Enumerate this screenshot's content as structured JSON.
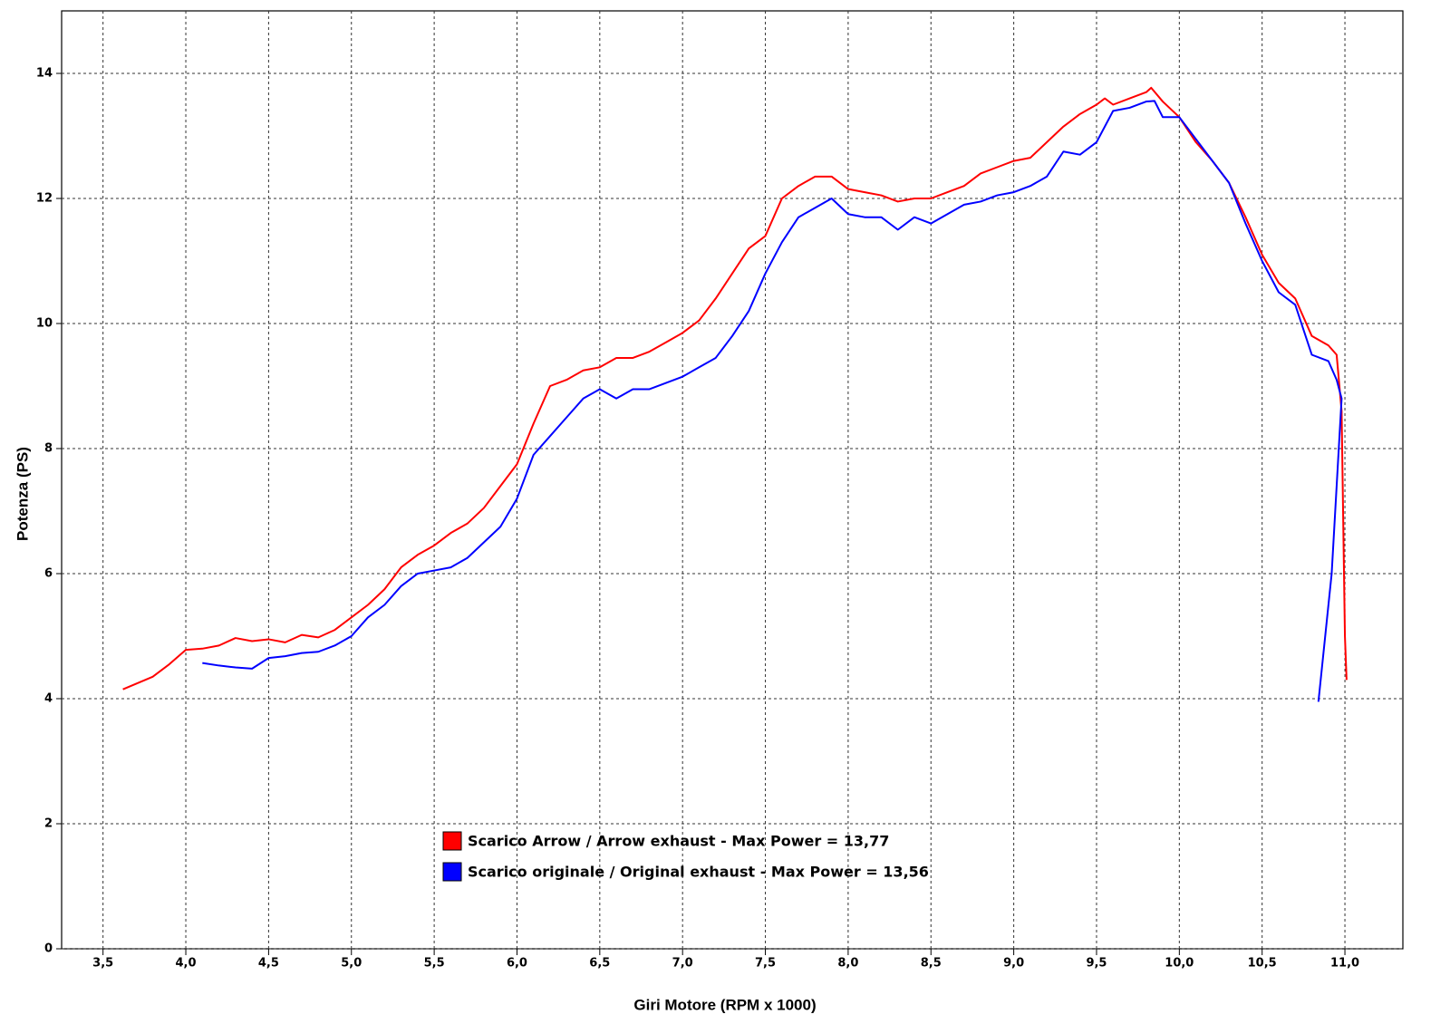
{
  "chart_data": {
    "type": "line",
    "x_label": "Giri Motore (RPM x 1000)",
    "y_label": "Potenza (PS)",
    "xlim": [
      3.25,
      11.35
    ],
    "ylim": [
      0,
      15
    ],
    "xticks": [
      {
        "value": 3.5,
        "label": "3,5"
      },
      {
        "value": 4.0,
        "label": "4,0"
      },
      {
        "value": 4.5,
        "label": "4,5"
      },
      {
        "value": 5.0,
        "label": "5,0"
      },
      {
        "value": 5.5,
        "label": "5,5"
      },
      {
        "value": 6.0,
        "label": "6,0"
      },
      {
        "value": 6.5,
        "label": "6,5"
      },
      {
        "value": 7.0,
        "label": "7,0"
      },
      {
        "value": 7.5,
        "label": "7,5"
      },
      {
        "value": 8.0,
        "label": "8,0"
      },
      {
        "value": 8.5,
        "label": "8,5"
      },
      {
        "value": 9.0,
        "label": "9,0"
      },
      {
        "value": 9.5,
        "label": "9,5"
      },
      {
        "value": 10.0,
        "label": "10,0"
      },
      {
        "value": 10.5,
        "label": "10,5"
      },
      {
        "value": 11.0,
        "label": "11,0"
      }
    ],
    "yticks": [
      0,
      2,
      4,
      6,
      8,
      10,
      12,
      14
    ],
    "grid": true,
    "series": [
      {
        "name": "Scarico Arrow / Arrow exhaust - Max Power = 13,77",
        "color": "#ff0000",
        "x": [
          3.62,
          3.8,
          3.9,
          4.0,
          4.1,
          4.2,
          4.3,
          4.4,
          4.5,
          4.6,
          4.7,
          4.8,
          4.9,
          5.0,
          5.1,
          5.2,
          5.3,
          5.4,
          5.5,
          5.6,
          5.7,
          5.8,
          5.9,
          6.0,
          6.1,
          6.2,
          6.3,
          6.4,
          6.5,
          6.6,
          6.7,
          6.8,
          6.9,
          7.0,
          7.1,
          7.2,
          7.3,
          7.4,
          7.5,
          7.6,
          7.7,
          7.8,
          7.9,
          8.0,
          8.1,
          8.2,
          8.3,
          8.4,
          8.5,
          8.6,
          8.7,
          8.8,
          8.9,
          9.0,
          9.1,
          9.2,
          9.3,
          9.4,
          9.5,
          9.55,
          9.6,
          9.7,
          9.8,
          9.83,
          9.9,
          10.0,
          10.1,
          10.2,
          10.3,
          10.4,
          10.5,
          10.6,
          10.7,
          10.8,
          10.9,
          10.95,
          10.98,
          11.0,
          11.01
        ],
        "values": [
          4.15,
          4.35,
          4.55,
          4.78,
          4.8,
          4.85,
          4.97,
          4.92,
          4.95,
          4.9,
          5.02,
          4.98,
          5.1,
          5.3,
          5.5,
          5.75,
          6.1,
          6.3,
          6.45,
          6.65,
          6.8,
          7.05,
          7.4,
          7.75,
          8.4,
          9.0,
          9.1,
          9.25,
          9.3,
          9.45,
          9.45,
          9.55,
          9.7,
          9.85,
          10.05,
          10.4,
          10.8,
          11.2,
          11.4,
          12.0,
          12.2,
          12.35,
          12.35,
          12.15,
          12.1,
          12.05,
          11.95,
          12.0,
          12.0,
          12.1,
          12.2,
          12.4,
          12.5,
          12.6,
          12.65,
          12.9,
          13.15,
          13.35,
          13.5,
          13.6,
          13.5,
          13.6,
          13.7,
          13.77,
          13.55,
          13.3,
          12.9,
          12.6,
          12.25,
          11.7,
          11.1,
          10.65,
          10.4,
          9.8,
          9.65,
          9.5,
          8.6,
          5.0,
          4.3
        ]
      },
      {
        "name": "Scarico originale / Original exhaust - Max Power = 13,56",
        "color": "#0000ff",
        "x": [
          4.1,
          4.2,
          4.3,
          4.4,
          4.5,
          4.6,
          4.7,
          4.8,
          4.9,
          5.0,
          5.1,
          5.2,
          5.3,
          5.4,
          5.5,
          5.6,
          5.7,
          5.8,
          5.9,
          6.0,
          6.1,
          6.2,
          6.3,
          6.4,
          6.5,
          6.6,
          6.7,
          6.8,
          6.9,
          7.0,
          7.1,
          7.2,
          7.3,
          7.4,
          7.5,
          7.6,
          7.7,
          7.8,
          7.9,
          8.0,
          8.1,
          8.2,
          8.3,
          8.4,
          8.5,
          8.6,
          8.7,
          8.8,
          8.9,
          9.0,
          9.1,
          9.2,
          9.3,
          9.4,
          9.5,
          9.6,
          9.7,
          9.8,
          9.85,
          9.9,
          10.0,
          10.1,
          10.2,
          10.3,
          10.4,
          10.5,
          10.6,
          10.7,
          10.8,
          10.9,
          10.95,
          10.98,
          10.92,
          10.84
        ],
        "values": [
          4.57,
          4.53,
          4.5,
          4.48,
          4.65,
          4.68,
          4.73,
          4.75,
          4.85,
          5.0,
          5.3,
          5.5,
          5.8,
          6.0,
          6.05,
          6.1,
          6.25,
          6.5,
          6.75,
          7.2,
          7.9,
          8.2,
          8.5,
          8.8,
          8.95,
          8.8,
          8.95,
          8.95,
          9.05,
          9.15,
          9.3,
          9.45,
          9.8,
          10.2,
          10.8,
          11.3,
          11.7,
          11.85,
          12.0,
          11.75,
          11.7,
          11.7,
          11.5,
          11.7,
          11.6,
          11.75,
          11.9,
          11.95,
          12.05,
          12.1,
          12.2,
          12.35,
          12.75,
          12.7,
          12.9,
          13.4,
          13.45,
          13.55,
          13.56,
          13.3,
          13.3,
          12.95,
          12.6,
          12.25,
          11.6,
          11.0,
          10.5,
          10.3,
          9.5,
          9.4,
          9.1,
          8.8,
          6.0,
          3.95
        ]
      }
    ]
  }
}
